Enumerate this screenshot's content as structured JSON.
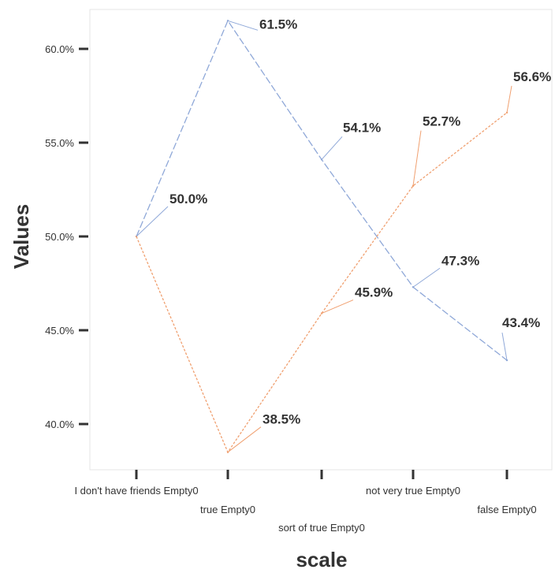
{
  "chart_data": {
    "type": "line",
    "xlabel": "scale",
    "ylabel": "Values",
    "categories": [
      "I don't have friends Empty0",
      "true Empty0",
      "sort of true Empty0",
      "not very true Empty0",
      "false Empty0"
    ],
    "yticks": [
      "40.0%",
      "45.0%",
      "50.0%",
      "55.0%",
      "60.0%"
    ],
    "ylim": [
      37.5,
      62.5
    ],
    "grid": false,
    "series": [
      {
        "values": [
          50.0,
          61.5,
          54.1,
          47.3,
          43.4
        ],
        "labels": [
          "50.0%",
          "61.5%",
          "54.1%",
          "47.3%",
          "43.4%"
        ],
        "color": "#8fa8d8"
      },
      {
        "values": [
          50.0,
          38.5,
          45.9,
          52.7,
          56.6
        ],
        "labels": [
          "50.0%",
          "38.5%",
          "45.9%",
          "52.7%",
          "56.6%"
        ],
        "color": "#f0a070"
      }
    ]
  }
}
